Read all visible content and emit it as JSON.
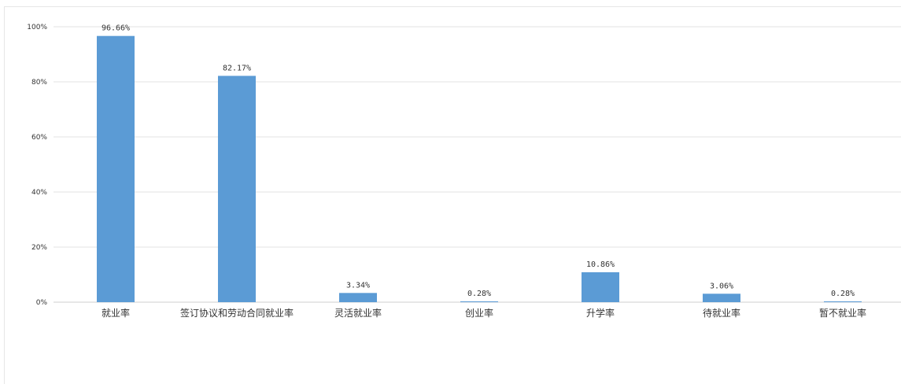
{
  "chart_data": {
    "type": "bar",
    "categories": [
      "就业率",
      "签订协议和劳动合同就业率",
      "灵活就业率",
      "创业率",
      "升学率",
      "待就业率",
      "暂不就业率"
    ],
    "values": [
      96.66,
      82.17,
      3.34,
      0.28,
      10.86,
      3.06,
      0.28
    ],
    "data_labels": [
      "96.66%",
      "82.17%",
      "3.34%",
      "0.28%",
      "10.86%",
      "3.06%",
      "0.28%"
    ],
    "yticks": [
      0,
      20,
      40,
      60,
      80,
      100
    ],
    "ytick_labels": [
      "0%",
      "20%",
      "40%",
      "60%",
      "80%",
      "100%"
    ],
    "ylim": [
      0,
      100
    ],
    "grid": true,
    "legend": "none",
    "bar_color": "#5b9bd5"
  }
}
